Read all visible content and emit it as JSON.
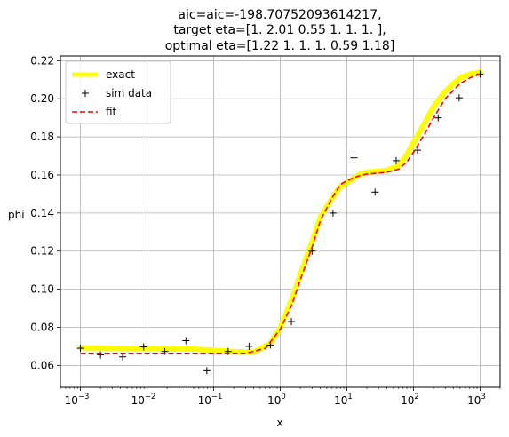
{
  "chart_data": {
    "type": "line",
    "title_lines": [
      "aic=aic=-198.70752093614217,",
      "target eta=[1.   2.01 0.55 1.   1.   1.  ],",
      "optimal eta=[1.22 1.   1.   1.   0.59 1.18]"
    ],
    "xlabel": "x",
    "ylabel": "phi",
    "xscale": "log",
    "xlim": [
      0.0005,
      2000
    ],
    "ylim": [
      0.0485,
      0.2225
    ],
    "grid": true,
    "legend_position": "upper-left",
    "x_ticks": [
      {
        "base": "10",
        "exp": "−3",
        "value": 0.001
      },
      {
        "base": "10",
        "exp": "−2",
        "value": 0.01
      },
      {
        "base": "10",
        "exp": "−1",
        "value": 0.1
      },
      {
        "base": "10",
        "exp": "0",
        "value": 1
      },
      {
        "base": "10",
        "exp": "1",
        "value": 10
      },
      {
        "base": "10",
        "exp": "2",
        "value": 100
      },
      {
        "base": "10",
        "exp": "3",
        "value": 1000
      }
    ],
    "y_ticks": [
      "0.06",
      "0.08",
      "0.10",
      "0.12",
      "0.14",
      "0.16",
      "0.18",
      "0.20",
      "0.22"
    ],
    "y_tick_values": [
      0.06,
      0.08,
      0.1,
      0.12,
      0.14,
      0.16,
      0.18,
      0.2,
      0.22
    ],
    "series": [
      {
        "name": "exact",
        "style": "line",
        "color": "#ffff00",
        "x": [
          0.001,
          0.01,
          0.05,
          0.1,
          0.2,
          0.4,
          0.7,
          1.0,
          1.5,
          2.0,
          3.0,
          4.0,
          6.0,
          8.0,
          10,
          15,
          20,
          30,
          40,
          60,
          80,
          100,
          150,
          200,
          300,
          500,
          700,
          1000
        ],
        "y": [
          0.0692,
          0.069,
          0.0685,
          0.068,
          0.0672,
          0.067,
          0.0715,
          0.08,
          0.095,
          0.108,
          0.125,
          0.138,
          0.148,
          0.154,
          0.156,
          0.16,
          0.1615,
          0.162,
          0.1625,
          0.165,
          0.171,
          0.177,
          0.188,
          0.196,
          0.204,
          0.211,
          0.213,
          0.214
        ]
      },
      {
        "name": "sim data",
        "style": "marker",
        "color": "#000000",
        "x": [
          0.001,
          0.002,
          0.0043,
          0.0089,
          0.0185,
          0.0383,
          0.079,
          0.165,
          0.34,
          0.71,
          1.47,
          3.0,
          6.2,
          12.8,
          26.5,
          55,
          115,
          235,
          485,
          1000
        ],
        "y": [
          0.069,
          0.0655,
          0.0645,
          0.0697,
          0.0673,
          0.073,
          0.0572,
          0.0673,
          0.07,
          0.0707,
          0.083,
          0.12,
          0.14,
          0.169,
          0.151,
          0.1675,
          0.173,
          0.19,
          0.2005,
          0.213
        ]
      },
      {
        "name": "fit",
        "style": "dashed",
        "color": "#ff0000",
        "x": [
          0.001,
          0.01,
          0.1,
          0.3,
          0.6,
          1.0,
          1.5,
          2.0,
          3.0,
          4.0,
          6.0,
          8.0,
          10,
          15,
          20,
          30,
          40,
          60,
          80,
          100,
          150,
          200,
          300,
          500,
          700,
          1000
        ],
        "y": [
          0.0663,
          0.0663,
          0.0663,
          0.0663,
          0.069,
          0.079,
          0.092,
          0.105,
          0.122,
          0.136,
          0.148,
          0.155,
          0.157,
          0.1595,
          0.1605,
          0.161,
          0.1615,
          0.163,
          0.167,
          0.172,
          0.182,
          0.19,
          0.2,
          0.208,
          0.211,
          0.213
        ]
      }
    ],
    "legend": [
      {
        "label": "exact",
        "color": "#ffff00",
        "style": "line"
      },
      {
        "label": "sim data",
        "color": "#000000",
        "style": "marker"
      },
      {
        "label": "fit",
        "color": "#ff0000",
        "style": "dashed"
      }
    ]
  }
}
